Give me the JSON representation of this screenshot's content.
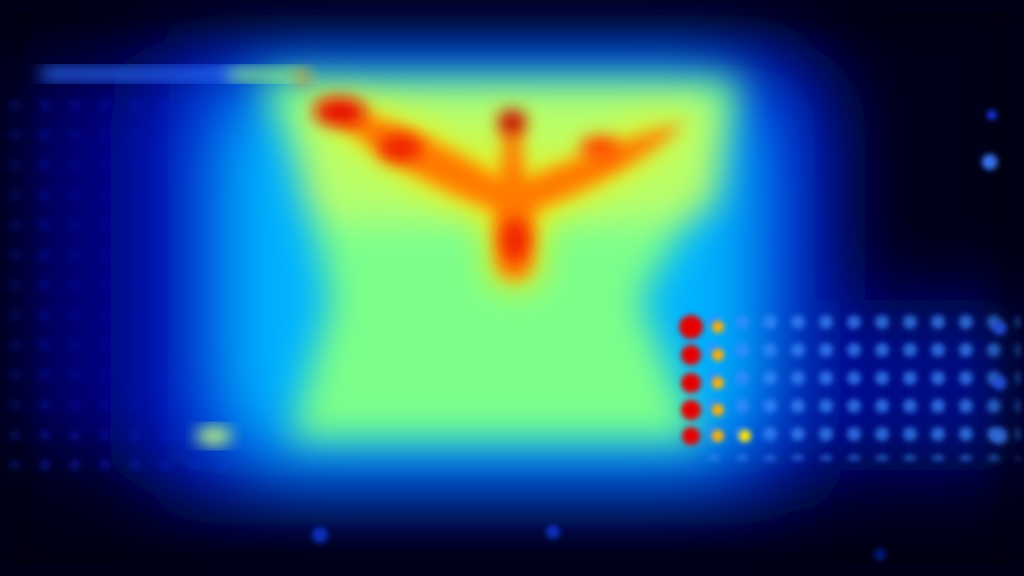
{
  "image": {
    "kind": "thermal-heatmap",
    "subject": "bird-silhouette-hotspot",
    "palette": {
      "background": "#000018",
      "cold": "#000a6e",
      "cool": "#0030ff",
      "mid": "#00c8ff",
      "warm": "#8cff6e",
      "hot": "#ffe600",
      "hotter": "#ff7800",
      "hottest": "#e60000"
    }
  }
}
